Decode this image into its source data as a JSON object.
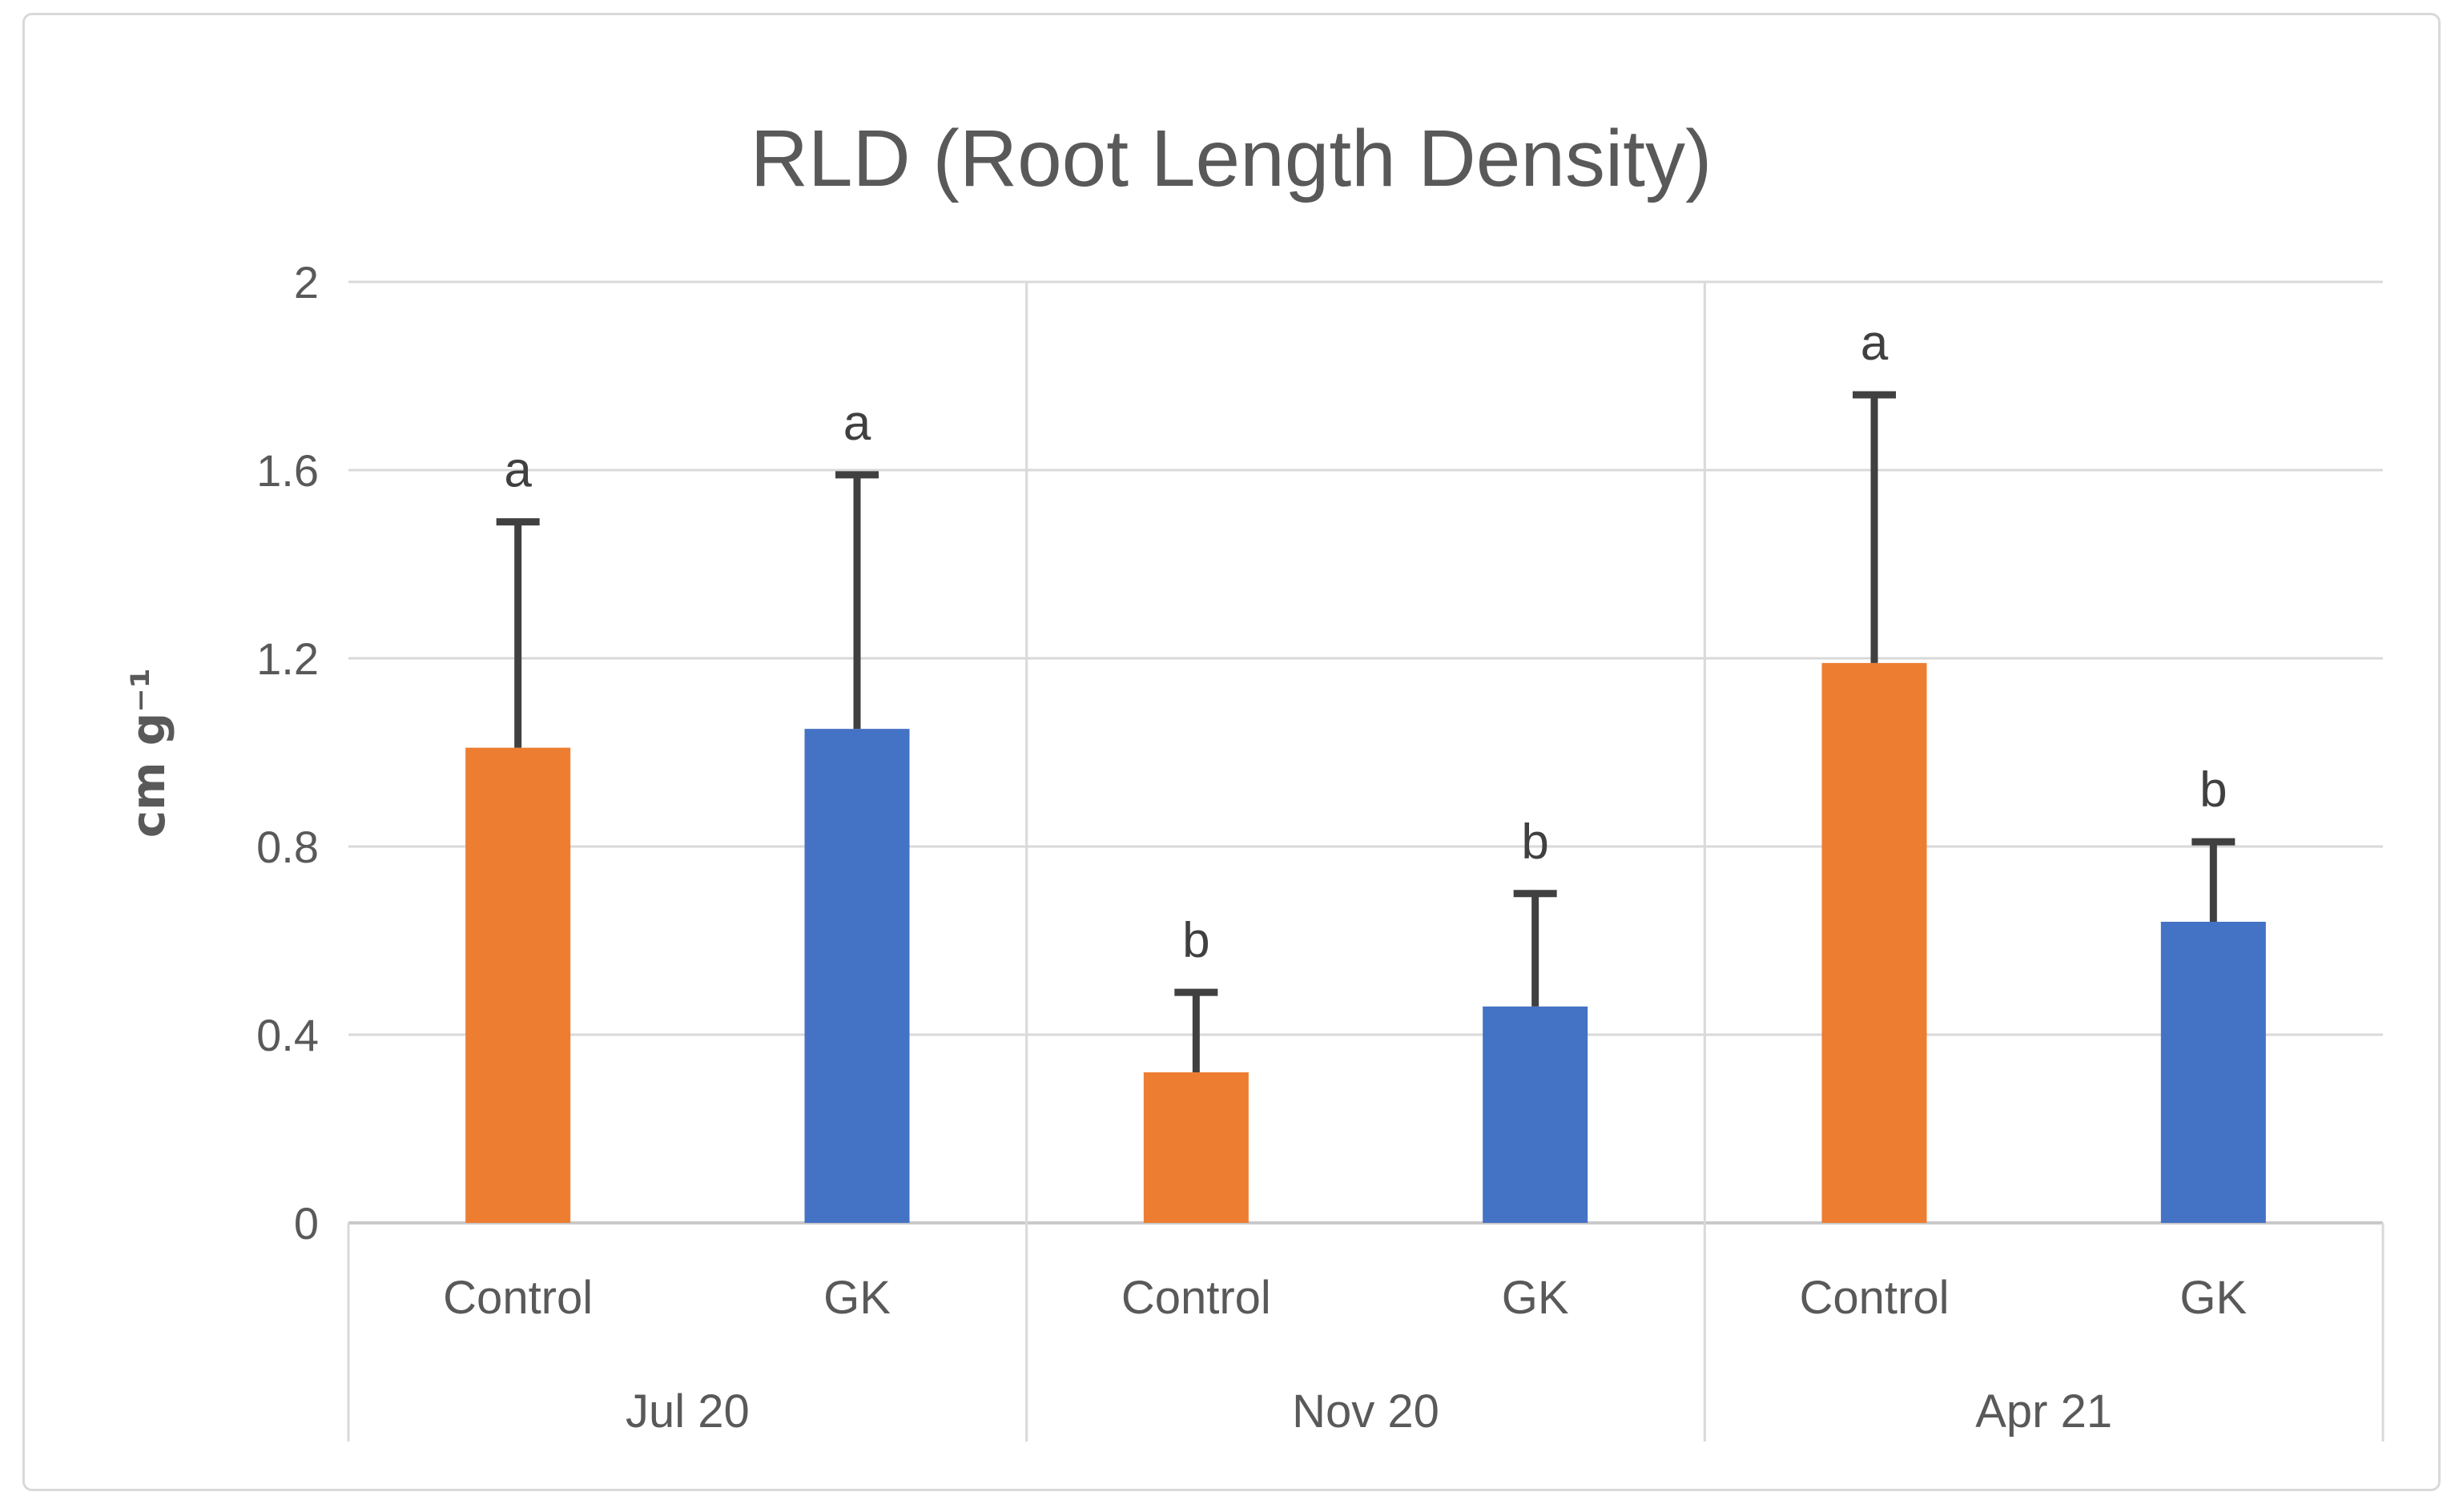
{
  "chart_data": {
    "type": "bar",
    "title": "RLD (Root Length Density)",
    "ylabel": "cm g⁻¹",
    "ylim": [
      0,
      2
    ],
    "yticks": [
      0,
      0.4,
      0.8,
      1.2,
      1.6,
      2
    ],
    "ytick_labels": [
      "0",
      "0.4",
      "0.8",
      "1.2",
      "1.6",
      "2"
    ],
    "grid": true,
    "legend": "none",
    "groups": [
      "Jul 20",
      "Nov 20",
      "Apr 21"
    ],
    "categories_per_group": [
      "Control",
      "GK"
    ],
    "series": [
      {
        "name": "Control",
        "color": "#ED7D31",
        "values": [
          1.01,
          0.32,
          1.19
        ],
        "errors_up": [
          0.48,
          0.17,
          0.57
        ],
        "letters": [
          "a",
          "b",
          "a"
        ]
      },
      {
        "name": "GK",
        "color": "#4472C4",
        "values": [
          1.05,
          0.46,
          0.64
        ],
        "errors_up": [
          0.54,
          0.24,
          0.17
        ],
        "letters": [
          "a",
          "b",
          "b"
        ]
      }
    ]
  },
  "colors": {
    "control_bar": "#ED7D31",
    "gk_bar": "#4472C4",
    "gridline": "#D9D9D9",
    "axis_line": "#C9C9C9",
    "divider": "#D9D9D9",
    "text": "#595959",
    "error_bar": "#404040",
    "letter": "#404040",
    "frame_border": "#D9D9D9",
    "background": "#FFFFFF"
  }
}
